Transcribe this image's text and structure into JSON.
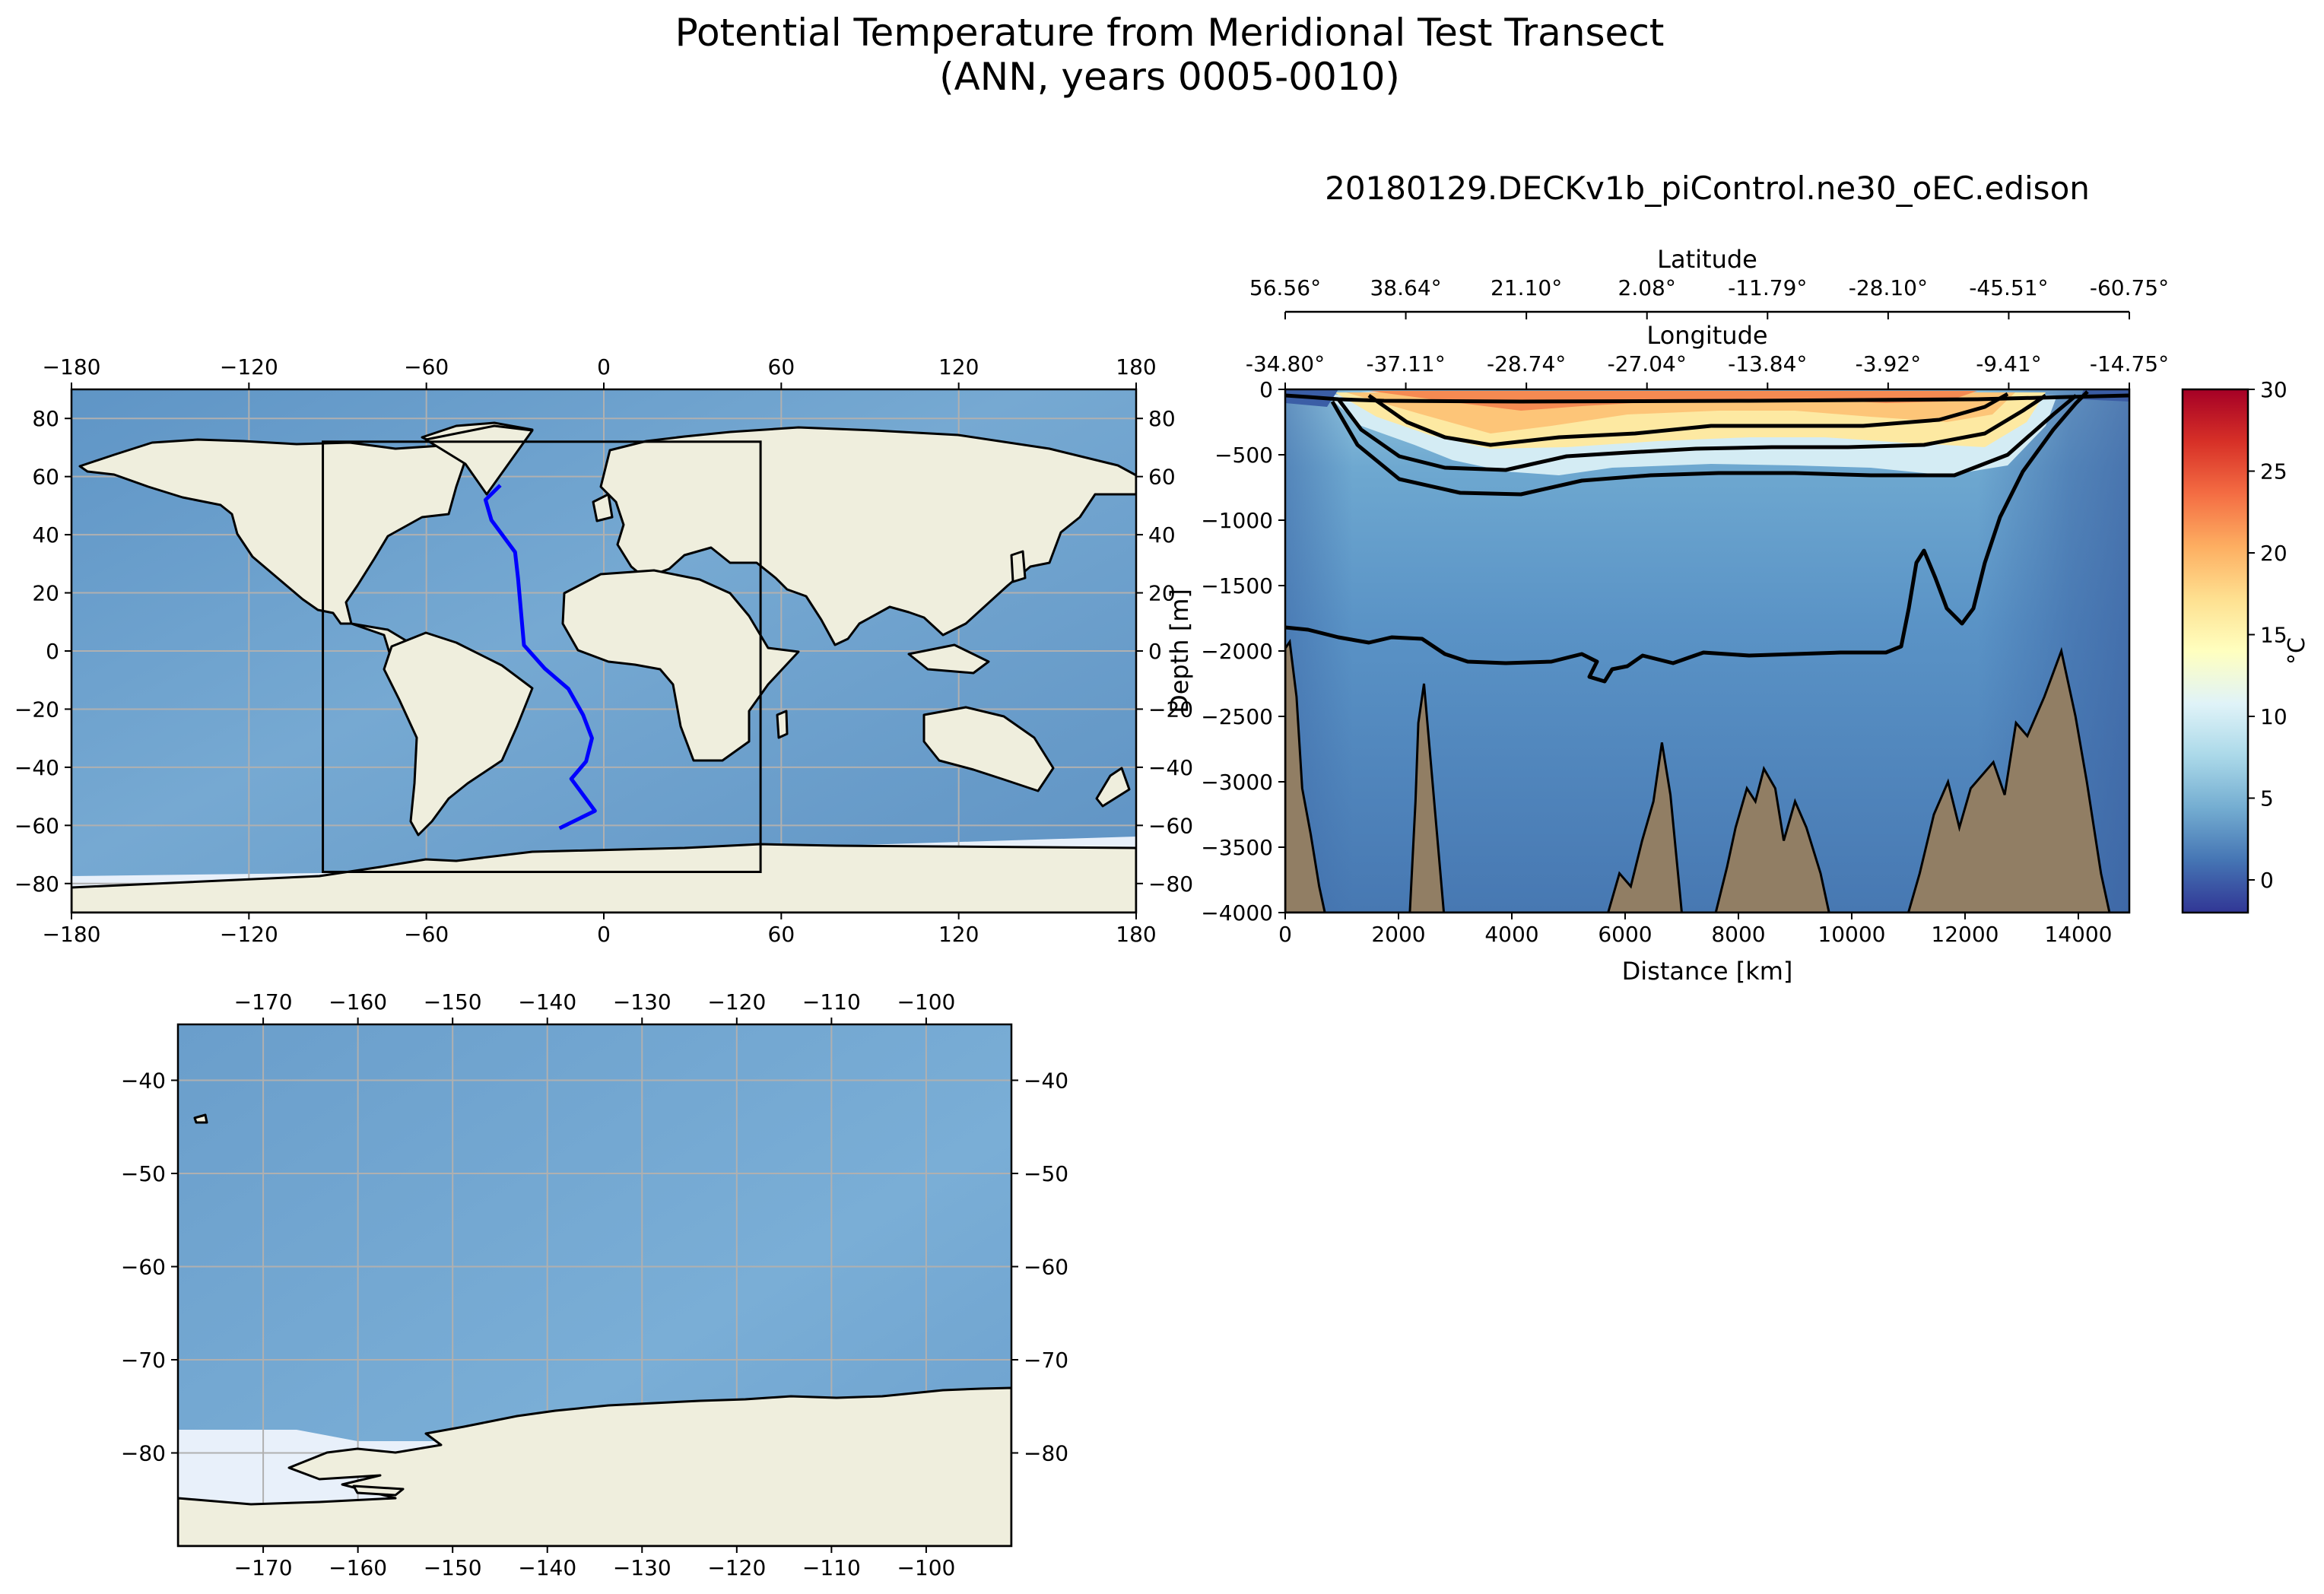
{
  "figure": {
    "title_line1": "Potential Temperature from Meridional Test Transect",
    "title_line2": "(ANN, years 0005-0010)"
  },
  "chart_data": [
    {
      "type": "map",
      "name": "global-map",
      "projection": "PlateCarree",
      "xlim": [
        -180,
        180
      ],
      "ylim": [
        -90,
        90
      ],
      "xticks": [
        "−180",
        "−120",
        "−60",
        "0",
        "60",
        "120",
        "180"
      ],
      "yticks": [
        "80",
        "60",
        "40",
        "20",
        "0",
        "−20",
        "−40",
        "−60",
        "−80"
      ],
      "gridlines": true,
      "region_box": {
        "lon_min": -95,
        "lon_max": 53,
        "lat_min": -76,
        "lat_max": 72
      },
      "transect_path": {
        "color": "#0000ff",
        "lon": [
          -35,
          -40,
          -38,
          -30,
          -29,
          -27,
          -20,
          -12,
          -7,
          -4,
          -6,
          -11,
          -3,
          -15
        ],
        "lat": [
          57,
          52,
          45,
          34,
          25,
          2,
          -6,
          -13,
          -22,
          -30,
          -38,
          -44,
          -55,
          -61
        ]
      }
    },
    {
      "type": "map",
      "name": "regional-map",
      "projection": "PlateCarree",
      "xlim": [
        -179,
        -91
      ],
      "ylim": [
        -90,
        -34
      ],
      "xticks": [
        "−170",
        "−160",
        "−150",
        "−140",
        "−130",
        "−120",
        "−110",
        "−100"
      ],
      "yticks": [
        "−40",
        "−50",
        "−60",
        "−70",
        "−80"
      ],
      "gridlines": true
    },
    {
      "type": "heatmap",
      "name": "transect-section",
      "title": "20180129.DECKv1b_piControl.ne30_oEC.edison",
      "xlabel": "Distance [km]",
      "ylabel": "Depth [m]",
      "xlim": [
        0,
        14900
      ],
      "ylim": [
        -4000,
        0
      ],
      "xticks": [
        "0",
        "2000",
        "4000",
        "6000",
        "8000",
        "10000",
        "12000",
        "14000"
      ],
      "yticks": [
        "0",
        "−500",
        "−1000",
        "−1500",
        "−2000",
        "−2500",
        "−3000",
        "−3500",
        "−4000"
      ],
      "top_axis_1": {
        "label": "Latitude",
        "ticks": [
          "56.56°",
          "38.64°",
          "21.10°",
          "2.08°",
          "-11.79°",
          "-28.10°",
          "-45.51°",
          "-60.75°"
        ]
      },
      "top_axis_2": {
        "label": "Longitude",
        "ticks": [
          "-34.80°",
          "-37.11°",
          "-28.74°",
          "-27.04°",
          "-13.84°",
          "-3.92°",
          "-9.41°",
          "-14.75°"
        ]
      },
      "contour_levels": [
        2,
        5,
        10,
        15,
        20,
        25
      ],
      "bathymetry_depth_m": [
        [
          0,
          -1980
        ],
        [
          80,
          -1930
        ],
        [
          200,
          -2350
        ],
        [
          300,
          -3050
        ],
        [
          450,
          -3400
        ],
        [
          600,
          -3800
        ],
        [
          700,
          -4000
        ],
        [
          2200,
          -4000
        ],
        [
          2300,
          -3150
        ],
        [
          2350,
          -2550
        ],
        [
          2450,
          -2250
        ],
        [
          2550,
          -2750
        ],
        [
          2650,
          -3250
        ],
        [
          2800,
          -4000
        ],
        [
          5700,
          -4000
        ],
        [
          5900,
          -3700
        ],
        [
          6100,
          -3800
        ],
        [
          6300,
          -3450
        ],
        [
          6500,
          -3150
        ],
        [
          6650,
          -2700
        ],
        [
          6800,
          -3100
        ],
        [
          7000,
          -4000
        ],
        [
          7600,
          -4000
        ],
        [
          7800,
          -3650
        ],
        [
          7950,
          -3350
        ],
        [
          8150,
          -3050
        ],
        [
          8300,
          -3150
        ],
        [
          8450,
          -2900
        ],
        [
          8650,
          -3050
        ],
        [
          8800,
          -3450
        ],
        [
          9000,
          -3150
        ],
        [
          9200,
          -3350
        ],
        [
          9450,
          -3700
        ],
        [
          9600,
          -4000
        ],
        [
          11000,
          -4000
        ],
        [
          11200,
          -3700
        ],
        [
          11450,
          -3250
        ],
        [
          11700,
          -3000
        ],
        [
          11900,
          -3350
        ],
        [
          12100,
          -3050
        ],
        [
          12300,
          -2950
        ],
        [
          12500,
          -2850
        ],
        [
          12700,
          -3100
        ],
        [
          12900,
          -2550
        ],
        [
          13100,
          -2650
        ],
        [
          13400,
          -2350
        ],
        [
          13700,
          -2000
        ],
        [
          13950,
          -2500
        ],
        [
          14150,
          -3000
        ],
        [
          14400,
          -3700
        ],
        [
          14550,
          -4000
        ]
      ]
    },
    {
      "type": "colorbar",
      "name": "temperature-colorbar",
      "label": "°C",
      "range": [
        -2,
        30
      ],
      "ticks": [
        "30",
        "25",
        "20",
        "15",
        "10",
        "5",
        "0"
      ],
      "colormap": "RdYlBu_r"
    }
  ],
  "colors": {
    "ocean": "#6ea2cf",
    "land": "#efeedd",
    "ice": "#e8f0fa",
    "transect": "#0000ff",
    "bathymetry": "#917e64",
    "grid": "#b0b0b0"
  }
}
